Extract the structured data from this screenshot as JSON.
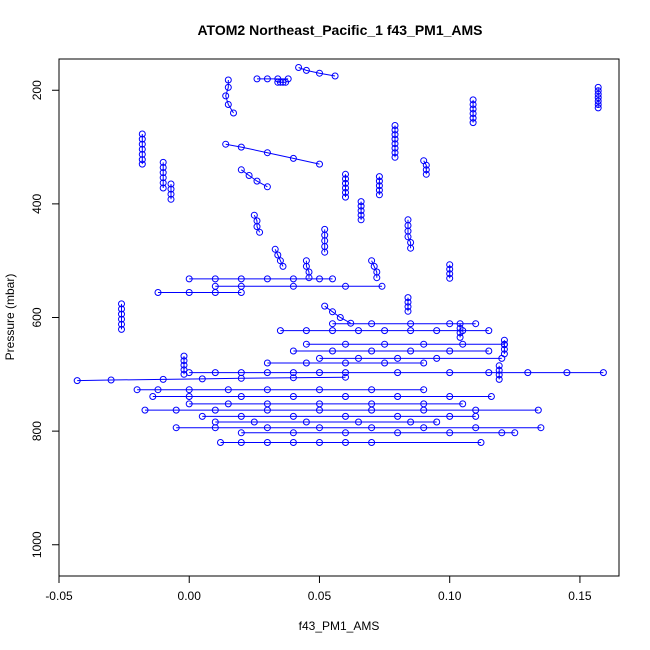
{
  "chart_data": {
    "type": "scatter",
    "title": "ATOM2 Northeast_Pacific_1 f43_PM1_AMS",
    "xlabel": "f43_PM1_AMS",
    "ylabel": "Pressure (mbar)",
    "xlim": [
      -0.05,
      0.165
    ],
    "ylim": [
      1055,
      145
    ],
    "y_reversed": true,
    "xticks": [
      -0.05,
      0.0,
      0.05,
      0.1,
      0.15
    ],
    "xtick_labels": [
      "-0.05",
      "0.00",
      "0.05",
      "0.10",
      "0.15"
    ],
    "yticks": [
      200,
      400,
      600,
      800,
      1000
    ],
    "ytick_labels": [
      "200",
      "400",
      "600",
      "800",
      "1000"
    ],
    "grid": false,
    "legend": "none",
    "marker": "open-circle",
    "connected": true,
    "color": "#0000ff",
    "series": [
      {
        "x": [
          0.157,
          0.157,
          0.157,
          0.157,
          0.157,
          0.157,
          0.157
        ],
        "y": [
          195,
          201,
          207,
          213,
          219,
          225,
          231
        ]
      },
      {
        "x": [
          0.015,
          0.015,
          0.014,
          0.015,
          0.017
        ],
        "y": [
          182,
          195,
          210,
          225,
          240
        ]
      },
      {
        "x": [
          0.035,
          0.036,
          0.034,
          0.037
        ],
        "y": [
          186,
          186,
          186,
          186
        ]
      },
      {
        "x": [
          0.109,
          0.109,
          0.109,
          0.109,
          0.109,
          0.109
        ],
        "y": [
          217,
          225,
          233,
          241,
          249,
          257
        ]
      },
      {
        "x": [
          0.079,
          0.079,
          0.079,
          0.079,
          0.079,
          0.079,
          0.079,
          0.079
        ],
        "y": [
          262,
          270,
          278,
          286,
          294,
          302,
          310,
          318
        ]
      },
      {
        "x": [
          -0.018,
          -0.018,
          -0.018,
          -0.018,
          -0.018,
          -0.018,
          -0.018
        ],
        "y": [
          277,
          286,
          295,
          304,
          313,
          322,
          330
        ]
      },
      {
        "x": [
          -0.01,
          -0.01,
          -0.01,
          -0.01,
          -0.01,
          -0.01
        ],
        "y": [
          327,
          336,
          345,
          354,
          363,
          372
        ]
      },
      {
        "x": [
          0.09,
          0.091,
          0.091,
          0.091
        ],
        "y": [
          324,
          332,
          340,
          348
        ]
      },
      {
        "x": [
          -0.007,
          -0.007,
          -0.007,
          -0.007
        ],
        "y": [
          365,
          374,
          383,
          392
        ]
      },
      {
        "x": [
          0.06,
          0.06,
          0.06,
          0.06,
          0.06,
          0.06
        ],
        "y": [
          348,
          356,
          364,
          372,
          380,
          388
        ]
      },
      {
        "x": [
          0.073,
          0.073,
          0.073,
          0.073,
          0.073
        ],
        "y": [
          352,
          360,
          368,
          376,
          384
        ]
      },
      {
        "x": [
          0.084,
          0.084,
          0.084,
          0.084,
          0.085,
          0.085
        ],
        "y": [
          428,
          438,
          448,
          458,
          468,
          478
        ]
      },
      {
        "x": [
          0.066,
          0.066,
          0.066,
          0.066,
          0.066
        ],
        "y": [
          396,
          404,
          412,
          420,
          428
        ]
      },
      {
        "x": [
          0.1,
          0.1,
          0.1,
          0.1
        ],
        "y": [
          507,
          515,
          523,
          531
        ]
      },
      {
        "x": [
          0.084,
          0.084,
          0.084,
          0.084
        ],
        "y": [
          565,
          573,
          581,
          589
        ]
      },
      {
        "x": [
          -0.026,
          -0.026,
          -0.026,
          -0.026,
          -0.026,
          -0.026
        ],
        "y": [
          576,
          585,
          594,
          603,
          612,
          621
        ]
      },
      {
        "x": [
          -0.002,
          -0.002,
          -0.002,
          -0.002,
          -0.002
        ],
        "y": [
          668,
          676,
          684,
          692,
          700
        ]
      },
      {
        "x": [
          0.104,
          0.104,
          0.104,
          0.104
        ],
        "y": [
          611,
          619,
          627,
          635
        ]
      },
      {
        "x": [
          0.121,
          0.121,
          0.121,
          0.121
        ],
        "y": [
          640,
          648,
          656,
          664
        ]
      },
      {
        "x": [
          0.119,
          0.119,
          0.119,
          0.119
        ],
        "y": [
          685,
          693,
          701,
          709
        ]
      },
      {
        "x": [
          0.0,
          0.01,
          0.02,
          0.03,
          0.04,
          0.05,
          0.06,
          0.08,
          0.1,
          0.115,
          0.13,
          0.145,
          0.159
        ],
        "y": [
          697,
          697,
          697,
          697,
          697,
          697,
          697,
          697,
          697,
          697,
          697,
          697,
          697
        ]
      },
      {
        "x": [
          -0.043,
          -0.03,
          -0.01,
          0.005,
          0.02,
          0.04,
          0.06
        ],
        "y": [
          711,
          710,
          709,
          708,
          707,
          706,
          705
        ]
      },
      {
        "x": [
          -0.02,
          -0.012,
          0.0,
          0.015,
          0.03,
          0.05,
          0.07,
          0.09
        ],
        "y": [
          727,
          727,
          727,
          727,
          727,
          727,
          727,
          727
        ]
      },
      {
        "x": [
          -0.014,
          0.0,
          0.02,
          0.04,
          0.06,
          0.08,
          0.1,
          0.116
        ],
        "y": [
          739,
          739,
          739,
          739,
          739,
          739,
          739,
          739
        ]
      },
      {
        "x": [
          -0.017,
          -0.005,
          0.01,
          0.03,
          0.05,
          0.07,
          0.09,
          0.11,
          0.134
        ],
        "y": [
          763,
          763,
          763,
          763,
          763,
          763,
          763,
          763,
          763
        ]
      },
      {
        "x": [
          0.0,
          0.015,
          0.03,
          0.05,
          0.07,
          0.09,
          0.105
        ],
        "y": [
          752,
          752,
          752,
          752,
          752,
          752,
          752
        ]
      },
      {
        "x": [
          0.005,
          0.02,
          0.04,
          0.06,
          0.08,
          0.1,
          0.11
        ],
        "y": [
          774,
          774,
          774,
          774,
          774,
          774,
          774
        ]
      },
      {
        "x": [
          0.01,
          0.025,
          0.045,
          0.065,
          0.085,
          0.095
        ],
        "y": [
          784,
          784,
          784,
          784,
          784,
          784
        ]
      },
      {
        "x": [
          -0.005,
          0.01,
          0.03,
          0.05,
          0.07,
          0.09,
          0.11,
          0.135
        ],
        "y": [
          794,
          794,
          794,
          794,
          794,
          794,
          794,
          794
        ]
      },
      {
        "x": [
          0.02,
          0.04,
          0.06,
          0.08,
          0.1,
          0.12,
          0.125
        ],
        "y": [
          803,
          803,
          803,
          803,
          803,
          803,
          803
        ]
      },
      {
        "x": [
          0.012,
          0.02,
          0.03,
          0.04,
          0.05,
          0.06,
          0.07,
          0.112
        ],
        "y": [
          820,
          820,
          820,
          820,
          820,
          820,
          820,
          820
        ]
      },
      {
        "x": [
          0.035,
          0.045,
          0.055,
          0.065,
          0.075,
          0.085,
          0.095,
          0.105,
          0.115
        ],
        "y": [
          623,
          623,
          623,
          623,
          623,
          623,
          623,
          623,
          623
        ]
      },
      {
        "x": [
          0.045,
          0.06,
          0.075,
          0.09,
          0.105,
          0.121
        ],
        "y": [
          647,
          647,
          647,
          647,
          647,
          647
        ]
      },
      {
        "x": [
          0.04,
          0.055,
          0.07,
          0.085,
          0.1,
          0.115
        ],
        "y": [
          659,
          659,
          659,
          659,
          659,
          659
        ]
      },
      {
        "x": [
          0.055,
          0.07,
          0.085,
          0.1,
          0.11
        ],
        "y": [
          611,
          611,
          611,
          611,
          611
        ]
      },
      {
        "x": [
          0.03,
          0.045,
          0.06,
          0.075,
          0.09
        ],
        "y": [
          680,
          680,
          680,
          680,
          680
        ]
      },
      {
        "x": [
          0.05,
          0.065,
          0.08,
          0.095,
          0.12
        ],
        "y": [
          672,
          672,
          672,
          672,
          672
        ]
      },
      {
        "x": [
          -0.012,
          0.0,
          0.01,
          0.02
        ],
        "y": [
          556,
          556,
          556,
          556
        ]
      },
      {
        "x": [
          0.0,
          0.01,
          0.02,
          0.03,
          0.04,
          0.05,
          0.055
        ],
        "y": [
          532,
          532,
          532,
          532,
          532,
          532,
          532
        ]
      },
      {
        "x": [
          0.01,
          0.02,
          0.04,
          0.06,
          0.074
        ],
        "y": [
          545,
          545,
          545,
          545,
          545
        ]
      },
      {
        "x": [
          0.014,
          0.02,
          0.03,
          0.04,
          0.05
        ],
        "y": [
          295,
          300,
          310,
          320,
          330
        ]
      },
      {
        "x": [
          0.026,
          0.03,
          0.034,
          0.038
        ],
        "y": [
          180,
          180,
          180,
          180
        ]
      },
      {
        "x": [
          0.042,
          0.045,
          0.05,
          0.056
        ],
        "y": [
          160,
          165,
          170,
          175
        ]
      },
      {
        "x": [
          0.02,
          0.023,
          0.026,
          0.03
        ],
        "y": [
          340,
          350,
          360,
          370
        ]
      },
      {
        "x": [
          0.052,
          0.052,
          0.052,
          0.052,
          0.052
        ],
        "y": [
          445,
          455,
          465,
          475,
          485
        ]
      },
      {
        "x": [
          0.052,
          0.055,
          0.058,
          0.062
        ],
        "y": [
          580,
          590,
          600,
          610
        ]
      },
      {
        "x": [
          0.045,
          0.045,
          0.046,
          0.046
        ],
        "y": [
          500,
          510,
          520,
          530
        ]
      },
      {
        "x": [
          0.025,
          0.026,
          0.026,
          0.027
        ],
        "y": [
          420,
          430,
          440,
          450
        ]
      },
      {
        "x": [
          0.033,
          0.034,
          0.035,
          0.036
        ],
        "y": [
          480,
          490,
          500,
          510
        ]
      },
      {
        "x": [
          0.07,
          0.071,
          0.072,
          0.072
        ],
        "y": [
          500,
          510,
          520,
          530
        ]
      }
    ]
  }
}
